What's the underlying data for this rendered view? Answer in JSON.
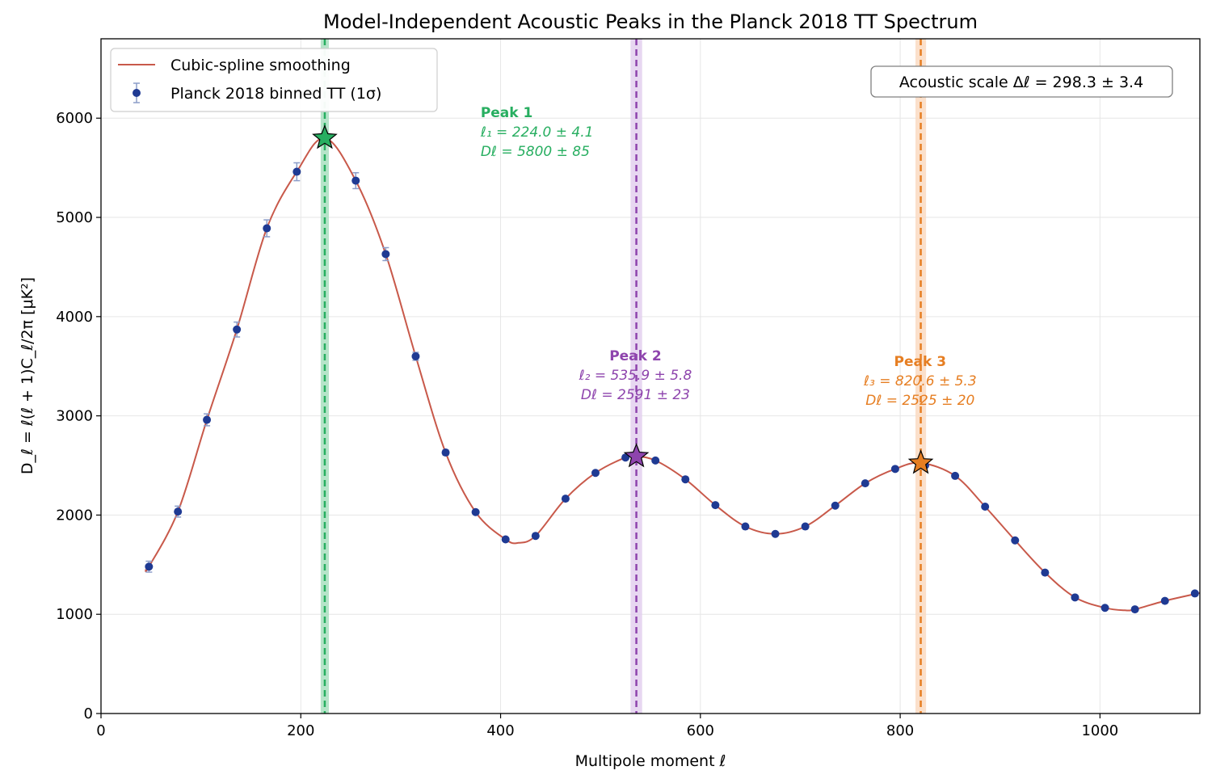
{
  "chart_data": {
    "type": "scatter",
    "title": "Model-Independent Acoustic Peaks in the Planck 2018 TT Spectrum",
    "xlabel": "Multipole moment ℓ",
    "ylabel": "D_ℓ = ℓ(ℓ + 1)C_ℓ/2π  [μK²]",
    "xlim": [
      0,
      1100
    ],
    "ylim": [
      0,
      6800
    ],
    "xticks": [
      0,
      200,
      400,
      600,
      800,
      1000
    ],
    "yticks": [
      0,
      1000,
      2000,
      3000,
      4000,
      5000,
      6000
    ],
    "grid": true,
    "legend_position": "top-left",
    "legend": [
      {
        "label": "Cubic-spline smoothing",
        "kind": "line",
        "color": "#c8594a"
      },
      {
        "label": "Planck 2018 binned TT (1σ)",
        "kind": "errorbar-marker",
        "color": "#1f3a93"
      }
    ],
    "series": [
      {
        "name": "Planck 2018 binned TT (1σ)",
        "x": [
          48,
          77,
          106,
          136,
          166,
          196,
          255,
          285,
          315,
          345,
          375,
          405,
          435,
          465,
          495,
          525,
          555,
          585,
          615,
          645,
          675,
          705,
          735,
          765,
          795,
          825,
          855,
          885,
          915,
          945,
          975,
          1005,
          1035,
          1065,
          1095
        ],
        "y": [
          1480,
          2035,
          2960,
          3870,
          4890,
          5460,
          5370,
          4630,
          3600,
          2630,
          2030,
          1755,
          1790,
          2165,
          2425,
          2580,
          2550,
          2360,
          2100,
          1885,
          1810,
          1885,
          2095,
          2320,
          2465,
          2500,
          2395,
          2085,
          1745,
          1420,
          1170,
          1065,
          1050,
          1135,
          1210
        ],
        "err": [
          55,
          55,
          60,
          75,
          85,
          90,
          80,
          65,
          40,
          25,
          20,
          18,
          18,
          18,
          18,
          18,
          18,
          18,
          16,
          15,
          15,
          15,
          15,
          15,
          15,
          15,
          15,
          15,
          14,
          14,
          14,
          14,
          14,
          14,
          14
        ]
      },
      {
        "name": "Cubic-spline smoothing",
        "x": [
          45,
          48,
          77,
          106,
          136,
          166,
          196,
          224,
          255,
          285,
          315,
          345,
          375,
          405,
          418,
          435,
          465,
          495,
          525,
          536,
          555,
          585,
          615,
          645,
          675,
          705,
          735,
          765,
          795,
          821,
          855,
          885,
          915,
          945,
          975,
          1005,
          1025,
          1035,
          1065,
          1100
        ],
        "y": [
          1460,
          1480,
          2035,
          2960,
          3870,
          4890,
          5460,
          5800,
          5370,
          4630,
          3600,
          2630,
          2030,
          1755,
          1720,
          1790,
          2165,
          2425,
          2580,
          2591,
          2550,
          2360,
          2100,
          1885,
          1810,
          1885,
          2095,
          2320,
          2465,
          2525,
          2395,
          2085,
          1745,
          1420,
          1170,
          1065,
          1040,
          1050,
          1135,
          1215
        ]
      }
    ],
    "peaks": [
      {
        "title": "Peak 1",
        "line1": "ℓ₁ = 224.0 ± 4.1",
        "line2": "Dℓ = 5800 ± 85",
        "l": 224.0,
        "l_err": 4.1,
        "D": 5800,
        "D_err": 85,
        "color": "#27ae60",
        "band": "#a9dfbf",
        "label_x": 380,
        "label_y": 6010
      },
      {
        "title": "Peak 2",
        "line1": "ℓ₂ = 535.9 ± 5.8",
        "line2": "Dℓ = 2591 ± 23",
        "l": 535.9,
        "l_err": 5.8,
        "D": 2591,
        "D_err": 23,
        "color": "#8e44ad",
        "band": "#e3d0ee",
        "label_x": 535,
        "label_y": 3560
      },
      {
        "title": "Peak 3",
        "line1": "ℓ₃ = 820.6 ± 5.3",
        "line2": "Dℓ = 2525 ± 20",
        "l": 820.6,
        "l_err": 5.3,
        "D": 2525,
        "D_err": 20,
        "color": "#e67e22",
        "band": "#fadbc2",
        "label_x": 820,
        "label_y": 3500
      }
    ],
    "annotation_box": "Acoustic scale Δℓ = 298.3 ± 3.4"
  }
}
